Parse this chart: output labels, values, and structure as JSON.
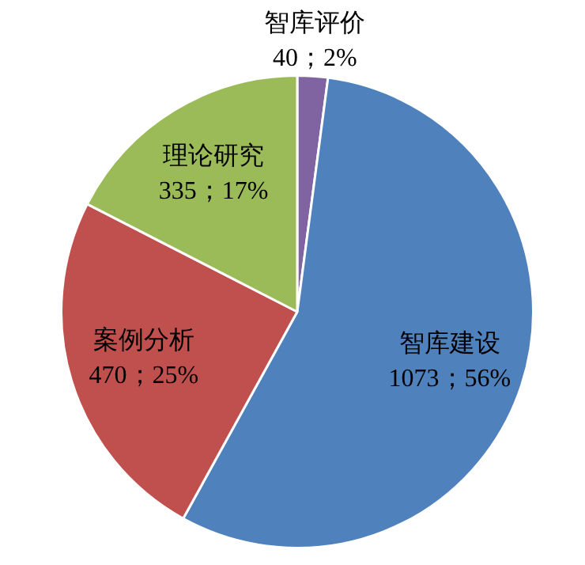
{
  "chart_data": {
    "type": "pie",
    "categories": [
      "智库评价",
      "智库建设",
      "案例分析",
      "理论研究"
    ],
    "values": [
      40,
      1073,
      470,
      335
    ],
    "colors": [
      "#8064a2",
      "#4f81bd",
      "#c0504d",
      "#9bbb59"
    ],
    "value_labels": [
      "40；2%",
      "1073；56%",
      "470；25%",
      "335；17%"
    ],
    "legend": false
  }
}
